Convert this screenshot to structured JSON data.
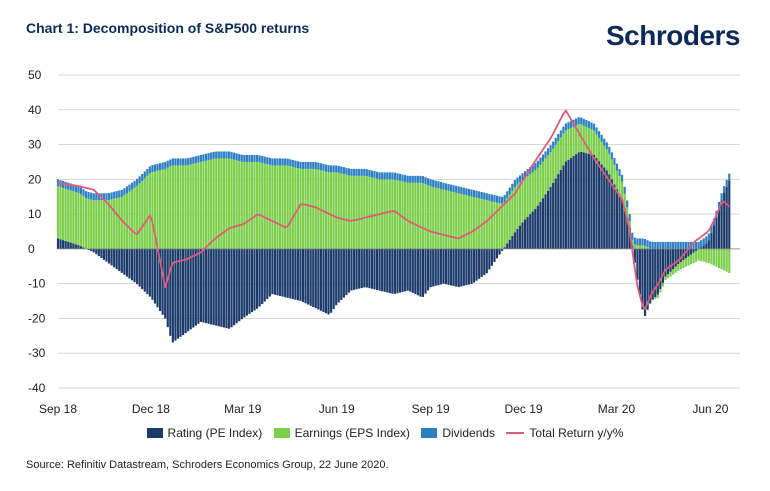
{
  "header": {
    "title": "Chart 1: Decomposition of S&P500 returns",
    "brand": "Schroders"
  },
  "footer": {
    "source": "Source: Refinitiv Datastream, Schroders Economics Group, 22 June 2020."
  },
  "chart_data": {
    "type": "bar",
    "stacked": true,
    "ylim": [
      -40,
      50
    ],
    "yticks": [
      50,
      40,
      30,
      20,
      10,
      0,
      -10,
      -20,
      -30,
      -40
    ],
    "xlim": [
      "2018-09-01",
      "2020-06-30"
    ],
    "xticks": [
      {
        "date": "2018-09-01",
        "label": "Sep 18"
      },
      {
        "date": "2018-12-01",
        "label": "Dec 18"
      },
      {
        "date": "2019-03-01",
        "label": "Mar 19"
      },
      {
        "date": "2019-06-01",
        "label": "Jun 19"
      },
      {
        "date": "2019-09-01",
        "label": "Sep 19"
      },
      {
        "date": "2019-12-01",
        "label": "Dec 19"
      },
      {
        "date": "2020-03-01",
        "label": "Mar 20"
      },
      {
        "date": "2020-06-01",
        "label": "Jun 20"
      }
    ],
    "grid": true,
    "legend_position": "bottom",
    "series": [
      {
        "name": "Rating (PE Index)",
        "kind": "bar",
        "color": "#1b3a6b"
      },
      {
        "name": "Earnings (EPS Index)",
        "kind": "bar",
        "color": "#7ccf4a"
      },
      {
        "name": "Dividends",
        "kind": "bar",
        "color": "#2b7fc2"
      },
      {
        "name": "Total Return y/y%",
        "kind": "line",
        "color": "#e05a79"
      }
    ],
    "anchors": {
      "dates": [
        "2018-09-01",
        "2018-09-22",
        "2018-10-06",
        "2018-10-20",
        "2018-11-03",
        "2018-11-17",
        "2018-12-01",
        "2018-12-15",
        "2018-12-22",
        "2019-01-05",
        "2019-01-19",
        "2019-02-02",
        "2019-02-16",
        "2019-03-01",
        "2019-03-16",
        "2019-03-30",
        "2019-04-13",
        "2019-04-27",
        "2019-05-11",
        "2019-05-25",
        "2019-06-01",
        "2019-06-15",
        "2019-06-29",
        "2019-07-13",
        "2019-07-27",
        "2019-08-10",
        "2019-08-24",
        "2019-09-01",
        "2019-09-14",
        "2019-09-28",
        "2019-10-12",
        "2019-10-26",
        "2019-11-09",
        "2019-11-23",
        "2019-12-01",
        "2019-12-14",
        "2019-12-28",
        "2020-01-11",
        "2020-01-25",
        "2020-02-08",
        "2020-02-22",
        "2020-03-07",
        "2020-03-14",
        "2020-03-21",
        "2020-03-28",
        "2020-04-04",
        "2020-04-11",
        "2020-04-18",
        "2020-05-02",
        "2020-05-16",
        "2020-05-30",
        "2020-06-06",
        "2020-06-13",
        "2020-06-20"
      ],
      "rating": [
        3,
        1,
        -1,
        -4,
        -7,
        -10,
        -14,
        -20,
        -27,
        -24,
        -21,
        -22,
        -23,
        -20,
        -17,
        -13,
        -14,
        -15,
        -17,
        -19,
        -16,
        -12,
        -11,
        -12,
        -13,
        -12,
        -14,
        -11,
        -10,
        -11,
        -10,
        -7,
        -1,
        5,
        8,
        12,
        18,
        25,
        28,
        27,
        22,
        14,
        6,
        -8,
        -20,
        -15,
        -13,
        -8,
        -4,
        -1,
        2,
        8,
        15,
        20
      ],
      "earnings": [
        15,
        15,
        14,
        14,
        15,
        18,
        22,
        23,
        24,
        24,
        25,
        26,
        26,
        25,
        25,
        24,
        24,
        23,
        23,
        22,
        22,
        21,
        21,
        20,
        20,
        19,
        19,
        18,
        17,
        16,
        15,
        14,
        13,
        13,
        12,
        11,
        10,
        9,
        8,
        7,
        6,
        5,
        2,
        1,
        1,
        0,
        -1,
        -1,
        -2,
        -3,
        -4,
        -5,
        -6,
        -7
      ],
      "dividends": [
        2,
        2,
        2,
        2,
        2,
        2,
        2,
        2,
        2,
        2,
        2,
        2,
        2,
        2,
        2,
        2,
        2,
        2,
        2,
        2,
        2,
        2,
        2,
        2,
        2,
        2,
        2,
        2,
        2,
        2,
        2,
        2,
        2,
        2,
        2,
        2,
        2,
        2,
        2,
        2,
        2,
        2,
        2,
        2,
        2,
        2,
        2,
        2,
        2,
        2,
        2,
        2,
        2,
        2
      ],
      "total_return": [
        19,
        18,
        17,
        13,
        8,
        4,
        10,
        -11,
        -4,
        -3,
        -1,
        3,
        6,
        7,
        10,
        8,
        6,
        13,
        12,
        10,
        9,
        8,
        9,
        10,
        11,
        8,
        6,
        5,
        4,
        3,
        5,
        8,
        12,
        16,
        20,
        26,
        32,
        40,
        33,
        26,
        20,
        14,
        5,
        -10,
        -18,
        -13,
        -10,
        -6,
        -3,
        2,
        5,
        9,
        14,
        12
      ]
    }
  }
}
